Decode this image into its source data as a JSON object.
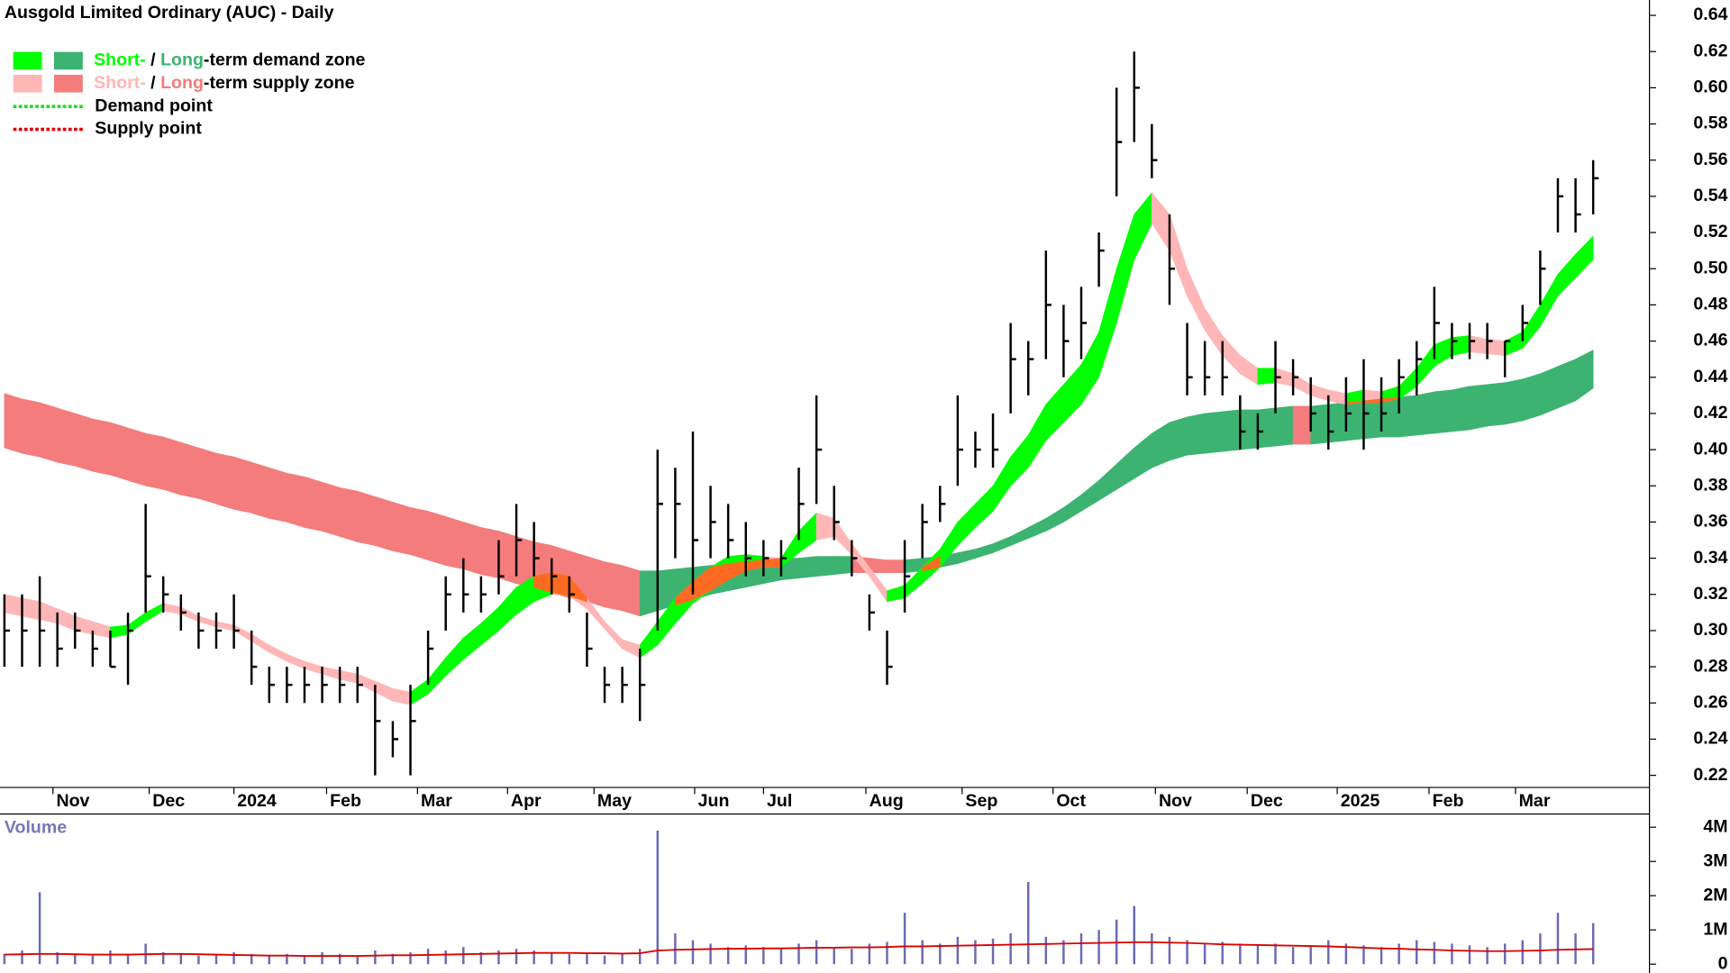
{
  "chart_data": [
    {
      "type": "ohlc",
      "title": "Ausgold Limited Ordinary (AUC) - Daily",
      "x": [
        0,
        1,
        2,
        3,
        4,
        5,
        6,
        7,
        8,
        9,
        10,
        11,
        12,
        13,
        14,
        15,
        16,
        17,
        18,
        19,
        20,
        21,
        22,
        23,
        24,
        25,
        26,
        27,
        28,
        29,
        30,
        31,
        32,
        33,
        34,
        35,
        36,
        37,
        38,
        39,
        40,
        41,
        42,
        43,
        44,
        45,
        46,
        47,
        48,
        49,
        50,
        51,
        52,
        53,
        54,
        55,
        56,
        57,
        58,
        59,
        60,
        61,
        62,
        63,
        64,
        65,
        66,
        67,
        68,
        69,
        70,
        71,
        72,
        73,
        74,
        75,
        76,
        77,
        78,
        79,
        80,
        81,
        82,
        83,
        84,
        85,
        86,
        87,
        88,
        89,
        90
      ],
      "high": [
        0.32,
        0.32,
        0.33,
        0.31,
        0.31,
        0.3,
        0.3,
        0.31,
        0.37,
        0.33,
        0.32,
        0.31,
        0.31,
        0.32,
        0.3,
        0.28,
        0.28,
        0.28,
        0.28,
        0.28,
        0.28,
        0.27,
        0.25,
        0.27,
        0.3,
        0.33,
        0.34,
        0.33,
        0.35,
        0.37,
        0.36,
        0.34,
        0.33,
        0.31,
        0.28,
        0.28,
        0.29,
        0.4,
        0.39,
        0.41,
        0.38,
        0.37,
        0.36,
        0.35,
        0.35,
        0.39,
        0.43,
        0.38,
        0.35,
        0.32,
        0.3,
        0.35,
        0.37,
        0.38,
        0.43,
        0.41,
        0.42,
        0.47,
        0.46,
        0.51,
        0.48,
        0.49,
        0.52,
        0.6,
        0.62,
        0.58,
        0.53,
        0.47,
        0.46,
        0.46,
        0.43,
        0.42,
        0.46,
        0.45,
        0.44,
        0.43,
        0.44,
        0.45,
        0.44,
        0.45,
        0.46,
        0.49,
        0.47,
        0.47,
        0.47,
        0.46,
        0.48,
        0.51,
        0.55,
        0.55,
        0.56
      ],
      "low": [
        0.28,
        0.28,
        0.28,
        0.28,
        0.29,
        0.28,
        0.28,
        0.27,
        0.31,
        0.31,
        0.3,
        0.29,
        0.29,
        0.29,
        0.27,
        0.26,
        0.26,
        0.26,
        0.26,
        0.26,
        0.26,
        0.22,
        0.23,
        0.22,
        0.27,
        0.3,
        0.31,
        0.31,
        0.32,
        0.33,
        0.33,
        0.32,
        0.31,
        0.28,
        0.26,
        0.26,
        0.25,
        0.3,
        0.34,
        0.32,
        0.34,
        0.34,
        0.33,
        0.33,
        0.33,
        0.35,
        0.37,
        0.35,
        0.33,
        0.3,
        0.27,
        0.31,
        0.34,
        0.36,
        0.38,
        0.39,
        0.39,
        0.42,
        0.43,
        0.45,
        0.44,
        0.45,
        0.49,
        0.54,
        0.57,
        0.55,
        0.48,
        0.43,
        0.43,
        0.43,
        0.4,
        0.4,
        0.42,
        0.43,
        0.41,
        0.4,
        0.41,
        0.4,
        0.41,
        0.42,
        0.43,
        0.45,
        0.45,
        0.45,
        0.45,
        0.44,
        0.46,
        0.48,
        0.52,
        0.52,
        0.53
      ],
      "close": [
        0.3,
        0.3,
        0.3,
        0.29,
        0.3,
        0.29,
        0.28,
        0.3,
        0.33,
        0.32,
        0.31,
        0.3,
        0.3,
        0.3,
        0.28,
        0.27,
        0.27,
        0.27,
        0.27,
        0.27,
        0.27,
        0.25,
        0.24,
        0.25,
        0.29,
        0.32,
        0.32,
        0.32,
        0.33,
        0.35,
        0.34,
        0.33,
        0.32,
        0.29,
        0.27,
        0.27,
        0.27,
        0.37,
        0.37,
        0.35,
        0.36,
        0.35,
        0.34,
        0.34,
        0.34,
        0.37,
        0.4,
        0.36,
        0.34,
        0.31,
        0.28,
        0.33,
        0.36,
        0.37,
        0.4,
        0.4,
        0.4,
        0.45,
        0.45,
        0.48,
        0.46,
        0.47,
        0.51,
        0.57,
        0.6,
        0.56,
        0.5,
        0.44,
        0.44,
        0.44,
        0.41,
        0.41,
        0.44,
        0.44,
        0.42,
        0.41,
        0.42,
        0.42,
        0.42,
        0.44,
        0.45,
        0.47,
        0.46,
        0.46,
        0.46,
        0.46,
        0.47,
        0.5,
        0.54,
        0.53,
        0.55
      ],
      "bar_color": "#000000",
      "zones": [
        {
          "upper": [
            0.431,
            0.428,
            0.426,
            0.423,
            0.42,
            0.417,
            0.415,
            0.412,
            0.409,
            0.407,
            0.404,
            0.401,
            0.398,
            0.396,
            0.393,
            0.39,
            0.387,
            0.385,
            0.382,
            0.379,
            0.377,
            0.374,
            0.371,
            0.368,
            0.366,
            0.363,
            0.36,
            0.357,
            0.355,
            0.352,
            0.349,
            0.347,
            0.344,
            0.341,
            0.338,
            0.336,
            0.333,
            0.333,
            0.334,
            0.335,
            0.336,
            0.337,
            0.338,
            0.339,
            0.34,
            0.34,
            0.341,
            0.341,
            0.341,
            0.34,
            0.339,
            0.339,
            0.34,
            0.341,
            0.343,
            0.345,
            0.348,
            0.352,
            0.357,
            0.362,
            0.368,
            0.375,
            0.383,
            0.392,
            0.401,
            0.409,
            0.415,
            0.418,
            0.42,
            0.421,
            0.422,
            0.422,
            0.423,
            0.424,
            0.424,
            0.425,
            0.426,
            0.427,
            0.428,
            0.429,
            0.43,
            0.432,
            0.433,
            0.435,
            0.436,
            0.437,
            0.439,
            0.442,
            0.446,
            0.45,
            0.455
          ],
          "lower": [
            0.401,
            0.398,
            0.396,
            0.393,
            0.391,
            0.388,
            0.386,
            0.383,
            0.38,
            0.378,
            0.375,
            0.373,
            0.37,
            0.367,
            0.365,
            0.362,
            0.36,
            0.357,
            0.355,
            0.352,
            0.349,
            0.347,
            0.344,
            0.342,
            0.339,
            0.336,
            0.334,
            0.331,
            0.329,
            0.326,
            0.324,
            0.321,
            0.318,
            0.316,
            0.313,
            0.311,
            0.308,
            0.311,
            0.314,
            0.317,
            0.32,
            0.322,
            0.324,
            0.326,
            0.328,
            0.329,
            0.33,
            0.331,
            0.332,
            0.332,
            0.332,
            0.332,
            0.333,
            0.335,
            0.337,
            0.34,
            0.343,
            0.347,
            0.351,
            0.355,
            0.36,
            0.366,
            0.372,
            0.378,
            0.384,
            0.39,
            0.394,
            0.397,
            0.398,
            0.399,
            0.4,
            0.401,
            0.402,
            0.403,
            0.403,
            0.404,
            0.405,
            0.406,
            0.407,
            0.407,
            0.408,
            0.409,
            0.41,
            0.411,
            0.413,
            0.414,
            0.416,
            0.419,
            0.423,
            0.427,
            0.434
          ],
          "demand_color": "#3cb371",
          "supply_color": "#f47c7c"
        },
        {
          "upper": [
            0.32,
            0.318,
            0.316,
            0.312,
            0.308,
            0.305,
            0.302,
            0.303,
            0.31,
            0.315,
            0.313,
            0.308,
            0.305,
            0.303,
            0.298,
            0.292,
            0.287,
            0.283,
            0.28,
            0.278,
            0.276,
            0.272,
            0.268,
            0.266,
            0.273,
            0.285,
            0.296,
            0.304,
            0.313,
            0.324,
            0.33,
            0.332,
            0.33,
            0.318,
            0.305,
            0.295,
            0.292,
            0.305,
            0.318,
            0.327,
            0.335,
            0.341,
            0.342,
            0.341,
            0.34,
            0.355,
            0.365,
            0.362,
            0.348,
            0.335,
            0.322,
            0.325,
            0.335,
            0.345,
            0.36,
            0.37,
            0.38,
            0.396,
            0.408,
            0.425,
            0.436,
            0.447,
            0.465,
            0.5,
            0.53,
            0.542,
            0.53,
            0.5,
            0.478,
            0.463,
            0.452,
            0.445,
            0.445,
            0.442,
            0.436,
            0.433,
            0.431,
            0.433,
            0.432,
            0.435,
            0.445,
            0.458,
            0.462,
            0.463,
            0.461,
            0.46,
            0.465,
            0.48,
            0.497,
            0.508,
            0.518
          ],
          "lower": [
            0.31,
            0.308,
            0.306,
            0.304,
            0.3,
            0.298,
            0.296,
            0.298,
            0.305,
            0.311,
            0.309,
            0.305,
            0.302,
            0.3,
            0.294,
            0.288,
            0.283,
            0.279,
            0.276,
            0.273,
            0.271,
            0.266,
            0.261,
            0.259,
            0.265,
            0.275,
            0.284,
            0.292,
            0.3,
            0.309,
            0.316,
            0.32,
            0.319,
            0.312,
            0.301,
            0.29,
            0.285,
            0.292,
            0.304,
            0.315,
            0.322,
            0.328,
            0.333,
            0.335,
            0.335,
            0.343,
            0.35,
            0.352,
            0.342,
            0.33,
            0.316,
            0.318,
            0.326,
            0.335,
            0.347,
            0.357,
            0.366,
            0.38,
            0.39,
            0.405,
            0.415,
            0.425,
            0.44,
            0.47,
            0.505,
            0.525,
            0.51,
            0.485,
            0.466,
            0.452,
            0.442,
            0.436,
            0.437,
            0.435,
            0.43,
            0.427,
            0.425,
            0.426,
            0.426,
            0.428,
            0.435,
            0.446,
            0.452,
            0.454,
            0.453,
            0.452,
            0.456,
            0.468,
            0.485,
            0.495,
            0.505
          ],
          "demand_color": "#00ff00",
          "supply_color": "#ffb6b6"
        }
      ],
      "overlap_color": "#ff6a22",
      "legend": [
        {
          "short": "Short-",
          "separator": " / ",
          "long": "Long",
          "label": "-term demand zone"
        },
        {
          "short": "Short-",
          "separator": " / ",
          "long": "Long",
          "label": "-term supply zone"
        },
        {
          "label": "Demand point",
          "color": "#22dd22"
        },
        {
          "label": "Supply point",
          "color": "#dd0000"
        }
      ],
      "xlim": [
        -0.25,
        93.1875
      ],
      "xticks": [
        {
          "value": 2.75,
          "label": "Nov"
        },
        {
          "value": 8.2,
          "label": "Dec"
        },
        {
          "value": 13,
          "label": "2024"
        },
        {
          "value": 18.25,
          "label": "Feb"
        },
        {
          "value": 23.4,
          "label": "Mar"
        },
        {
          "value": 28.5,
          "label": "Apr"
        },
        {
          "value": 33.4,
          "label": "May"
        },
        {
          "value": 39.1,
          "label": "Jun"
        },
        {
          "value": 43,
          "label": "Jul"
        },
        {
          "value": 48.8,
          "label": "Aug"
        },
        {
          "value": 54.25,
          "label": "Sep"
        },
        {
          "value": 59.4,
          "label": "Oct"
        },
        {
          "value": 65.2,
          "label": "Nov"
        },
        {
          "value": 70.4,
          "label": "Dec"
        },
        {
          "value": 75.5,
          "label": "2025"
        },
        {
          "value": 80.7,
          "label": "Feb"
        },
        {
          "value": 85.6,
          "label": "Mar"
        }
      ],
      "ylim": [
        0.2133,
        0.6485
      ],
      "yticks": [
        0.22,
        0.24,
        0.26,
        0.28,
        {
          "value": 0.3,
          "label": "0.30"
        },
        0.32,
        0.34,
        0.36,
        0.38,
        {
          "value": 0.4,
          "label": "0.40"
        },
        0.42,
        0.44,
        0.46,
        0.48,
        {
          "value": 0.5,
          "label": "0.50"
        },
        0.52,
        0.54,
        0.56,
        0.58,
        {
          "value": 0.6,
          "label": "0.60"
        },
        0.62,
        0.64
      ],
      "grid": false
    },
    {
      "type": "bar",
      "title": "Volume",
      "title_color": "#7777bb",
      "values": [
        300000,
        400000,
        2100000,
        350000,
        300000,
        250000,
        400000,
        300000,
        600000,
        350000,
        300000,
        250000,
        300000,
        350000,
        300000,
        250000,
        300000,
        250000,
        350000,
        300000,
        250000,
        400000,
        300000,
        350000,
        450000,
        400000,
        500000,
        350000,
        400000,
        450000,
        400000,
        350000,
        300000,
        300000,
        250000,
        300000,
        450000,
        3900000,
        900000,
        700000,
        600000,
        500000,
        550000,
        500000,
        450000,
        600000,
        700000,
        500000,
        450000,
        600000,
        650000,
        1500000,
        700000,
        600000,
        800000,
        700000,
        750000,
        900000,
        2400000,
        800000,
        700000,
        900000,
        1000000,
        1300000,
        1700000,
        900000,
        800000,
        700000,
        600000,
        650000,
        600000,
        550000,
        600000,
        500000,
        550000,
        700000,
        600000,
        550000,
        500000,
        600000,
        700000,
        650000,
        600000,
        550000,
        500000,
        600000,
        700000,
        900000,
        1500000,
        900000,
        1200000
      ],
      "color": "#6a6ab4",
      "moving_average": [
        280000,
        290000,
        300000,
        300000,
        290000,
        280000,
        280000,
        280000,
        290000,
        300000,
        300000,
        290000,
        280000,
        270000,
        260000,
        250000,
        250000,
        240000,
        240000,
        240000,
        240000,
        250000,
        260000,
        260000,
        270000,
        280000,
        290000,
        300000,
        310000,
        320000,
        330000,
        330000,
        330000,
        320000,
        320000,
        310000,
        320000,
        400000,
        420000,
        430000,
        440000,
        450000,
        450000,
        460000,
        460000,
        470000,
        480000,
        480000,
        490000,
        490000,
        500000,
        520000,
        520000,
        530000,
        540000,
        550000,
        560000,
        570000,
        580000,
        590000,
        600000,
        610000,
        620000,
        630000,
        640000,
        640000,
        630000,
        620000,
        600000,
        580000,
        570000,
        560000,
        550000,
        540000,
        530000,
        520000,
        500000,
        480000,
        460000,
        450000,
        430000,
        420000,
        400000,
        390000,
        380000,
        380000,
        390000,
        400000,
        420000,
        430000,
        440000
      ],
      "ma_color": "#dd0000",
      "ylim": [
        -258000,
        4387000
      ],
      "yticks": [
        0,
        {
          "value": 1000000,
          "label": "1M"
        },
        {
          "value": 2000000,
          "label": "2M"
        },
        {
          "value": 3000000,
          "label": "3M"
        },
        {
          "value": 4000000,
          "label": "4M"
        }
      ]
    }
  ]
}
